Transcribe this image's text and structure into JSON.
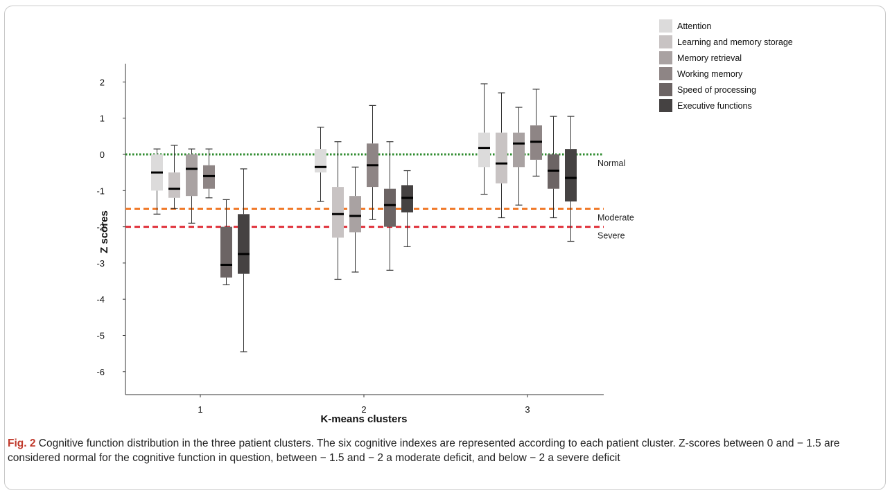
{
  "chart_data": {
    "type": "box",
    "xlabel": "K-means clusters",
    "ylabel": "Z scores",
    "categories": [
      "1",
      "2",
      "3"
    ],
    "ylim": [
      -6.5,
      2.5
    ],
    "yticks": [
      2,
      1,
      0,
      -1,
      -2,
      -3,
      -4,
      -5,
      -6
    ],
    "grid": false,
    "legend_position": "top-right",
    "series": [
      {
        "name": "Attention",
        "color": "#dcdbdb",
        "boxes": [
          {
            "min": -1.65,
            "q1": -1.0,
            "median": -0.5,
            "q3": 0.0,
            "max": 0.15
          },
          {
            "min": -1.3,
            "q1": -0.5,
            "median": -0.35,
            "q3": 0.15,
            "max": 0.75
          },
          {
            "min": -1.1,
            "q1": -0.35,
            "median": 0.18,
            "q3": 0.6,
            "max": 1.95
          }
        ]
      },
      {
        "name": "Learning and memory storage",
        "color": "#c8c3c3",
        "boxes": [
          {
            "min": -1.5,
            "q1": -1.2,
            "median": -0.95,
            "q3": -0.5,
            "max": 0.25
          },
          {
            "min": -3.45,
            "q1": -2.3,
            "median": -1.65,
            "q3": -0.9,
            "max": 0.35
          },
          {
            "min": -1.75,
            "q1": -0.8,
            "median": -0.25,
            "q3": 0.6,
            "max": 1.7
          }
        ]
      },
      {
        "name": "Memory retrieval",
        "color": "#a9a2a2",
        "boxes": [
          {
            "min": -1.9,
            "q1": -1.15,
            "median": -0.4,
            "q3": 0.0,
            "max": 0.15
          },
          {
            "min": -3.25,
            "q1": -2.15,
            "median": -1.7,
            "q3": -1.15,
            "max": -0.35
          },
          {
            "min": -1.4,
            "q1": -0.35,
            "median": 0.3,
            "q3": 0.6,
            "max": 1.3
          }
        ]
      },
      {
        "name": "Working memory",
        "color": "#8e8585",
        "boxes": [
          {
            "min": -1.2,
            "q1": -0.95,
            "median": -0.6,
            "q3": -0.3,
            "max": 0.15
          },
          {
            "min": -1.8,
            "q1": -0.9,
            "median": -0.3,
            "q3": 0.3,
            "max": 1.35
          },
          {
            "min": -0.6,
            "q1": -0.15,
            "median": 0.35,
            "q3": 0.8,
            "max": 1.8
          }
        ]
      },
      {
        "name": "Speed of processing",
        "color": "#6c6464",
        "boxes": [
          {
            "min": -3.6,
            "q1": -3.4,
            "median": -3.05,
            "q3": -2.0,
            "max": -1.25
          },
          {
            "min": -3.2,
            "q1": -2.0,
            "median": -1.4,
            "q3": -0.95,
            "max": 0.35
          },
          {
            "min": -1.75,
            "q1": -0.95,
            "median": -0.45,
            "q3": 0.0,
            "max": 1.05
          }
        ]
      },
      {
        "name": "Executive functions",
        "color": "#454242",
        "boxes": [
          {
            "min": -5.45,
            "q1": -3.3,
            "median": -2.75,
            "q3": -1.65,
            "max": -0.4
          },
          {
            "min": -2.55,
            "q1": -1.6,
            "median": -1.2,
            "q3": -0.85,
            "max": -0.45
          },
          {
            "min": -2.4,
            "q1": -1.3,
            "median": -0.65,
            "q3": 0.15,
            "max": 1.05
          }
        ]
      }
    ],
    "reference_lines": [
      {
        "label": "Normal",
        "y": 0,
        "color": "#2e8b2e",
        "style": "dotted"
      },
      {
        "label": "Moderate",
        "y": -1.5,
        "color": "#f07a2a",
        "style": "dashed"
      },
      {
        "label": "Severe",
        "y": -2,
        "color": "#e0303a",
        "style": "dashed"
      }
    ]
  },
  "caption": {
    "fig_label": "Fig. 2",
    "text": "Cognitive function distribution in the three patient clusters. The six cognitive indexes are represented according to each patient cluster. Z-scores between 0 and − 1.5 are considered normal for the cognitive function in question, between − 1.5 and − 2 a moderate deficit, and below − 2 a severe deficit"
  }
}
